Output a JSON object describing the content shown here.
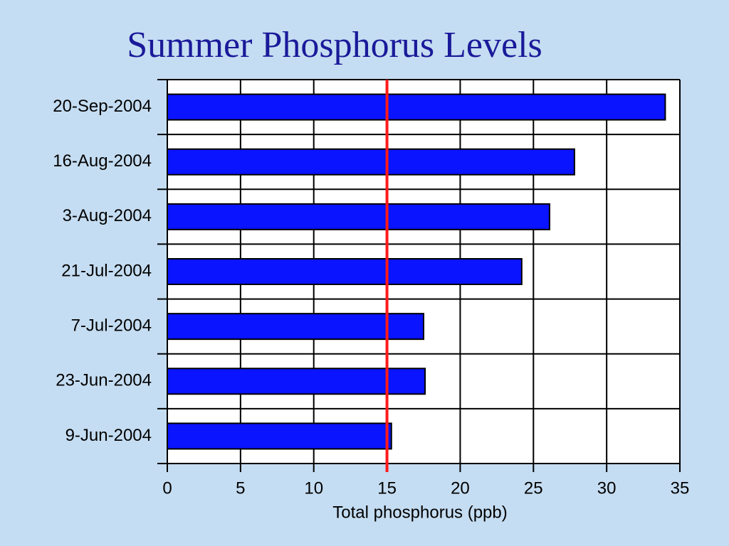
{
  "chart_data": {
    "type": "hbar",
    "title": "Summer Phosphorus Levels",
    "categories": [
      "20-Sep-2004",
      "16-Aug-2004",
      "3-Aug-2004",
      "21-Jul-2004",
      "7-Jul-2004",
      "23-Jun-2004",
      "9-Jun-2004"
    ],
    "values": [
      34.0,
      27.8,
      26.1,
      24.2,
      17.5,
      17.6,
      15.3
    ],
    "color": "#0a14ff",
    "xlabel": "Total phosphorus (ppb)",
    "xlim": [
      0,
      35
    ],
    "xticks": [
      0,
      5,
      10,
      15,
      20,
      25,
      30,
      35
    ],
    "reference_line": 15,
    "reference_color": "#ff1a1a",
    "grid": true
  }
}
